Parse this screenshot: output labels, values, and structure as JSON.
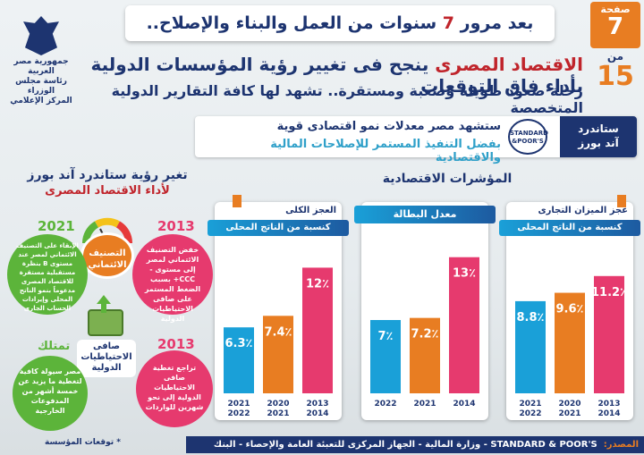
{
  "header": {
    "banner_prefix": "بعد مرور",
    "banner_num": "7",
    "banner_suffix": "سنوات من العمل والبناء والإصلاح..",
    "page_label": "صفحة",
    "page_num": "7",
    "of_label": "من",
    "of_num": "15",
    "logo_lines": [
      "جمهورية مصر العربية",
      "رئاسة مجلس الوزراء",
      "المركز الإعلامي"
    ],
    "headline_red": "الاقتصاد المصرى",
    "headline_rest": "ينجح فى تغيير رؤية المؤسسات الدولية بأداء فاق التوقعات",
    "subheadline": "رحلة صعود طويلة وصعبة ومستقرة.. تشهد لها كافة التقارير الدولية المتخصصة"
  },
  "sp": {
    "tag_line1": "ستاندرد",
    "tag_line2": "آند بورز",
    "logo_line1": "STANDARD",
    "logo_line2": "&POOR'S",
    "line1": "ستشهد مصر معدلات نمو اقتصادى قوية",
    "line2": "بفضل التنفيذ المستمر للإصلاحات المالية والاقتصادية"
  },
  "sections": {
    "indicators_title": "المؤشرات الاقتصادية",
    "rating_title": "تغير رؤية ستاندرد آند بورز",
    "rating_sub": "لأداء الاقتصاد المصرى"
  },
  "chart_data": [
    {
      "type": "bar",
      "title": "عجز الميزان التجارى",
      "subtitle": "كنسبة من الناتج المحلى الإجمالى",
      "categories": [
        "2013\n2014",
        "2020\n2021",
        "2021\n2022"
      ],
      "values": [
        11.2,
        9.6,
        8.8
      ],
      "labels": [
        "11.2٪",
        "9.6٪",
        "8.8٪"
      ],
      "ylim": [
        0,
        14
      ]
    },
    {
      "type": "bar",
      "title": "معدل البطالة",
      "subtitle": "",
      "categories": [
        "2014",
        "2021",
        "2022"
      ],
      "values": [
        13,
        7.2,
        7
      ],
      "labels": [
        "13٪",
        "7.2٪",
        "7٪"
      ],
      "ylim": [
        0,
        14
      ]
    },
    {
      "type": "bar",
      "title": "العجز الكلى",
      "subtitle": "كنسبة من الناتج المحلى الإجمالى",
      "categories": [
        "2013\n2014",
        "2020\n2021",
        "2021\n2022"
      ],
      "values": [
        12,
        7.4,
        6.3
      ],
      "labels": [
        "12٪",
        "7.4٪",
        "6.3٪"
      ],
      "ylim": [
        0,
        14
      ]
    }
  ],
  "rating": {
    "gauge_label": "التصنيف الائتماني",
    "b2013_year": "2013",
    "b2013_text": "خفض التصنيف الائتماني لمصر إلى مستوى -CCC+ بسبب الضغط المستمر على صافى الاحتياطيات الدولية",
    "b2021_year": "2021",
    "b2021_text": "الإبقاء على التصنيف الائتماني لمصر عند مستوى B بنظرة مستقبلية مستقرة للاقتصاد المصرى مدعوماً بنمو الناتج المحلى وإيرادات الحساب الجارى",
    "reserves_label": "صافى الاحتياطيات الدولية",
    "c2013_year": "2013",
    "c2013_text": "تراجع تغطية صافى الاحتياطيات الدولية إلى نحو شهرين للواردات",
    "c_now_year": "تمتلك",
    "c_now_text": "مصر سيولة كافية لتغطية ما يزيد عن خمسة أشهر من المدفوعات الخارجية"
  },
  "footer": {
    "note": "* توقعات المؤسسة",
    "source_label": "المصدر:",
    "sources": "STANDARD & POOR'S - وزارة المالية - الجهاز المركزى للتعبئة العامة والإحصاء - البنك المركزى المصرى"
  },
  "colors": {
    "navy": "#1d3470",
    "orange": "#e87d22",
    "red": "#c0242b",
    "pink": "#e63a6e",
    "green": "#5cb43a",
    "cyan": "#1aa0d8"
  }
}
